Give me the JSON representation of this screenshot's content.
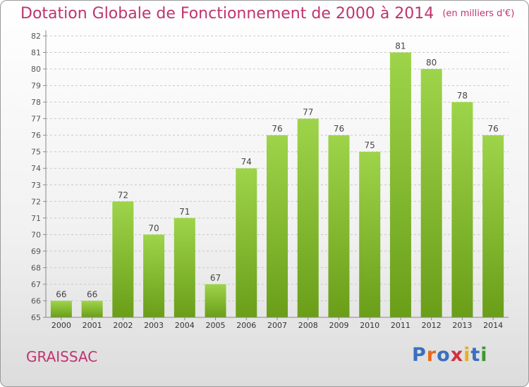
{
  "header": {
    "title": "Dotation Globale de Fonctionnement de 2000 à 2014",
    "unit": "(en milliers d'€)"
  },
  "footer": {
    "city": "GRAISSAC",
    "logo": "Proxiti"
  },
  "colors": {
    "title": "#c0336f",
    "bar_light": "#9ed44a",
    "bar_dark": "#6a9e19",
    "logo_letters": [
      "#3a6fc0",
      "#e86a1c",
      "#3a6fc0",
      "#d03040",
      "#e8b020",
      "#3a6fc0",
      "#3a9a30"
    ]
  },
  "chart_data": {
    "type": "bar",
    "categories": [
      "2000",
      "2001",
      "2002",
      "2003",
      "2004",
      "2005",
      "2006",
      "2007",
      "2008",
      "2009",
      "2010",
      "2011",
      "2012",
      "2013",
      "2014"
    ],
    "values": [
      66,
      66,
      72,
      70,
      71,
      67,
      74,
      76,
      77,
      76,
      75,
      81,
      80,
      78,
      76
    ],
    "y_ticks": [
      "65",
      "66",
      "67",
      "68",
      "69",
      "70",
      "71",
      "72",
      "73",
      "74",
      "75",
      "76",
      "77",
      "78",
      "79",
      "80",
      "81",
      "82"
    ],
    "ylim": [
      65,
      82
    ],
    "grid": "horizontal dashed",
    "legend": "none"
  }
}
